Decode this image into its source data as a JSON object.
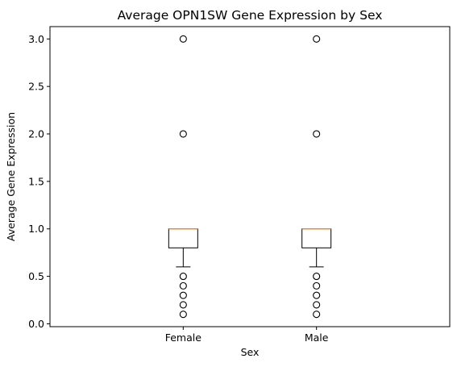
{
  "chart_data": {
    "type": "boxplot",
    "title": "Average OPN1SW Gene Expression by Sex",
    "xlabel": "Sex",
    "ylabel": "Average Gene Expression",
    "categories": [
      "Female",
      "Male"
    ],
    "ylim": [
      -0.03,
      3.13
    ],
    "yticks": [
      0.0,
      0.5,
      1.0,
      1.5,
      2.0,
      2.5,
      3.0
    ],
    "ytick_labels": [
      "0.0",
      "0.5",
      "1.0",
      "1.5",
      "2.0",
      "2.5",
      "3.0"
    ],
    "grid": false,
    "boxes": [
      {
        "category": "Female",
        "whisker_low": 0.6,
        "q1": 0.8,
        "median": 1.0,
        "q3": 1.0,
        "whisker_high": 1.0,
        "outliers": [
          0.1,
          0.2,
          0.3,
          0.4,
          0.5,
          2.0,
          3.0
        ]
      },
      {
        "category": "Male",
        "whisker_low": 0.6,
        "q1": 0.8,
        "median": 1.0,
        "q3": 1.0,
        "whisker_high": 1.0,
        "outliers": [
          0.1,
          0.2,
          0.3,
          0.4,
          0.5,
          2.0,
          3.0
        ]
      }
    ],
    "colors": {
      "median": "#e8893f",
      "box": "#000000",
      "outlier": "#000000"
    }
  }
}
